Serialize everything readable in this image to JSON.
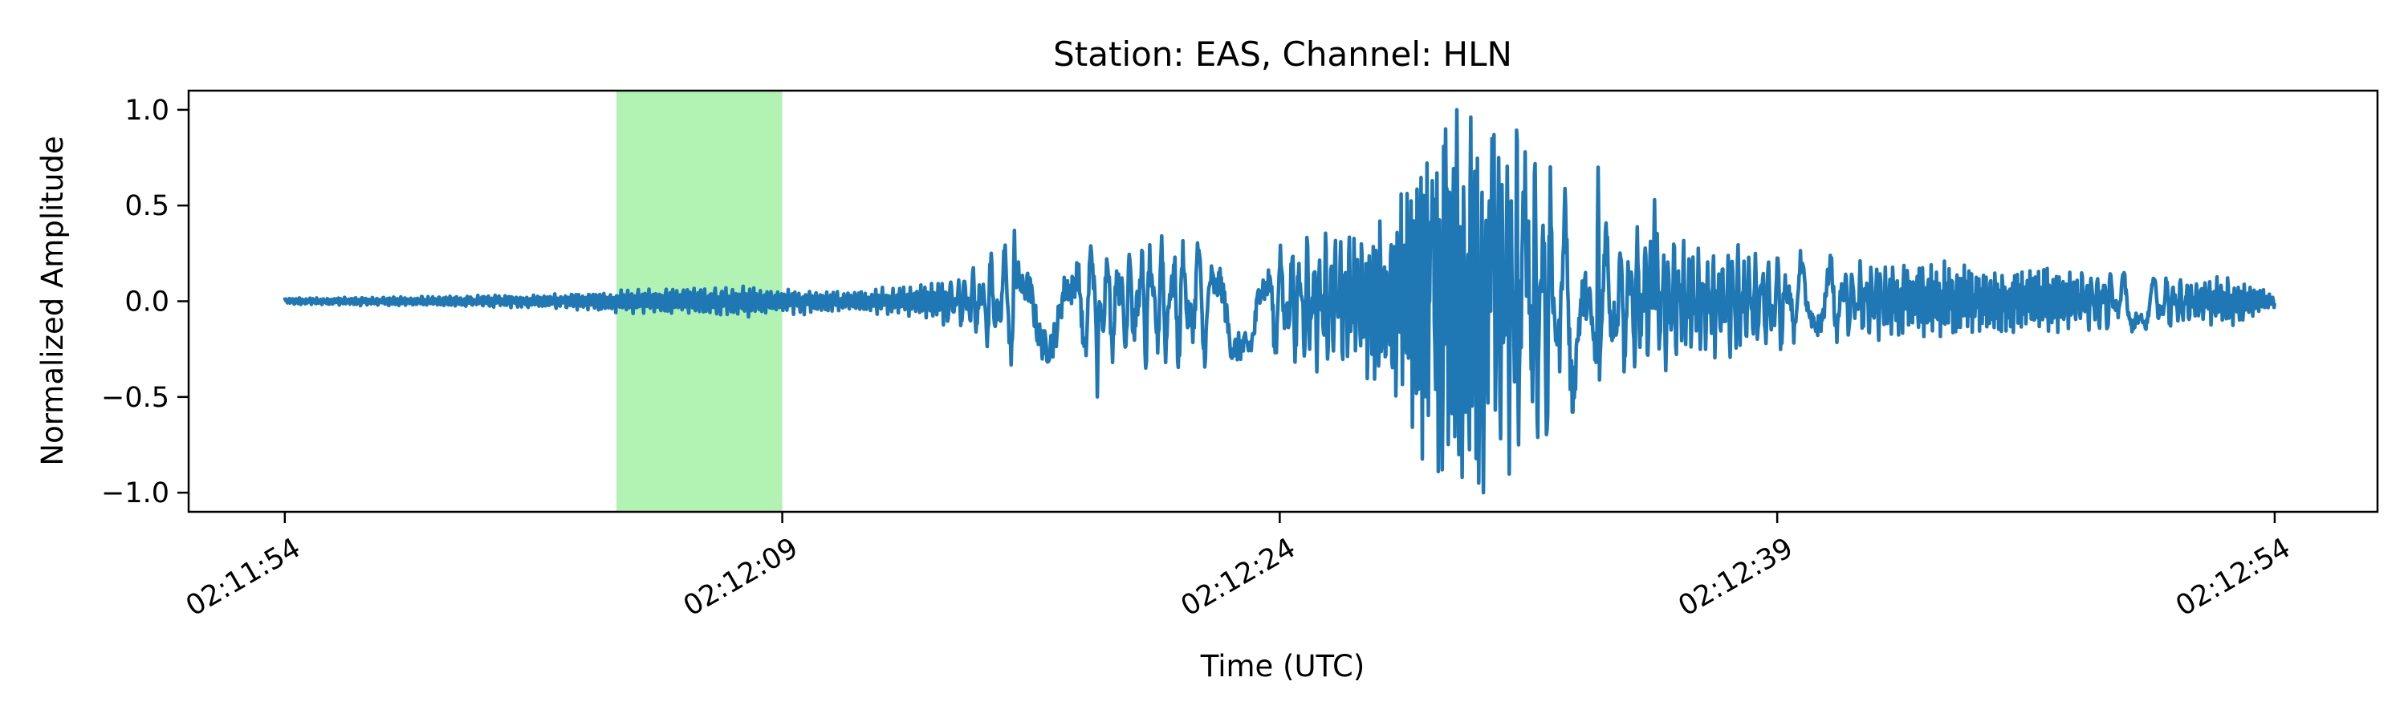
{
  "chart_data": {
    "type": "line",
    "title": "Station: EAS, Channel: HLN",
    "xlabel": "Time (UTC)",
    "ylabel": "Normalized Amplitude",
    "x_tick_labels": [
      "02:11:54",
      "02:12:09",
      "02:12:24",
      "02:12:39",
      "02:12:54"
    ],
    "x_tick_seconds": [
      0,
      15,
      30,
      45,
      60
    ],
    "xlim_seconds": [
      -2.9,
      63.1
    ],
    "y_ticks": [
      -1.0,
      -0.5,
      0.0,
      0.5,
      1.0
    ],
    "y_tick_labels": [
      "−1.0",
      "−0.5",
      "0.0",
      "0.5",
      "1.0"
    ],
    "ylim": [
      -1.1,
      1.1
    ],
    "grid": false,
    "legend": "none",
    "highlight_span": {
      "start_seconds": 10.0,
      "end_seconds": 15.0,
      "color": "#b2f2b2"
    },
    "series": [
      {
        "color": "#1f77b4",
        "envelope": [
          [
            0,
            0.02
          ],
          [
            5,
            0.03
          ],
          [
            8,
            0.04
          ],
          [
            10,
            0.06
          ],
          [
            12,
            0.07
          ],
          [
            14,
            0.08
          ],
          [
            15,
            0.07
          ],
          [
            17,
            0.05
          ],
          [
            19,
            0.08
          ],
          [
            20.5,
            0.14
          ],
          [
            21.5,
            0.3
          ],
          [
            23,
            0.35
          ],
          [
            25,
            0.3
          ],
          [
            26.5,
            0.35
          ],
          [
            28,
            0.32
          ],
          [
            30,
            0.3
          ],
          [
            32,
            0.35
          ],
          [
            33.5,
            0.55
          ],
          [
            34.5,
            0.8
          ],
          [
            35.5,
            1.0
          ],
          [
            36.5,
            0.95
          ],
          [
            37.5,
            0.85
          ],
          [
            38.5,
            0.6
          ],
          [
            40,
            0.4
          ],
          [
            42,
            0.32
          ],
          [
            45,
            0.25
          ],
          [
            48,
            0.2
          ],
          [
            52,
            0.18
          ],
          [
            56,
            0.15
          ],
          [
            59,
            0.12
          ],
          [
            60,
            0.03
          ]
        ],
        "peaks": [
          [
            35.35,
            1.0
          ],
          [
            35.5,
            -0.92
          ],
          [
            36.0,
            -0.95
          ],
          [
            36.15,
            -1.0
          ],
          [
            36.4,
            0.85
          ],
          [
            35.0,
            0.9
          ],
          [
            34.9,
            -0.88
          ],
          [
            34.6,
            0.63
          ],
          [
            36.6,
            0.75
          ],
          [
            37.4,
            0.78
          ],
          [
            37.2,
            -0.75
          ],
          [
            24.5,
            -0.5
          ],
          [
            22.0,
            0.37
          ],
          [
            39.6,
            0.7
          ],
          [
            41.3,
            0.53
          ]
        ]
      }
    ]
  }
}
